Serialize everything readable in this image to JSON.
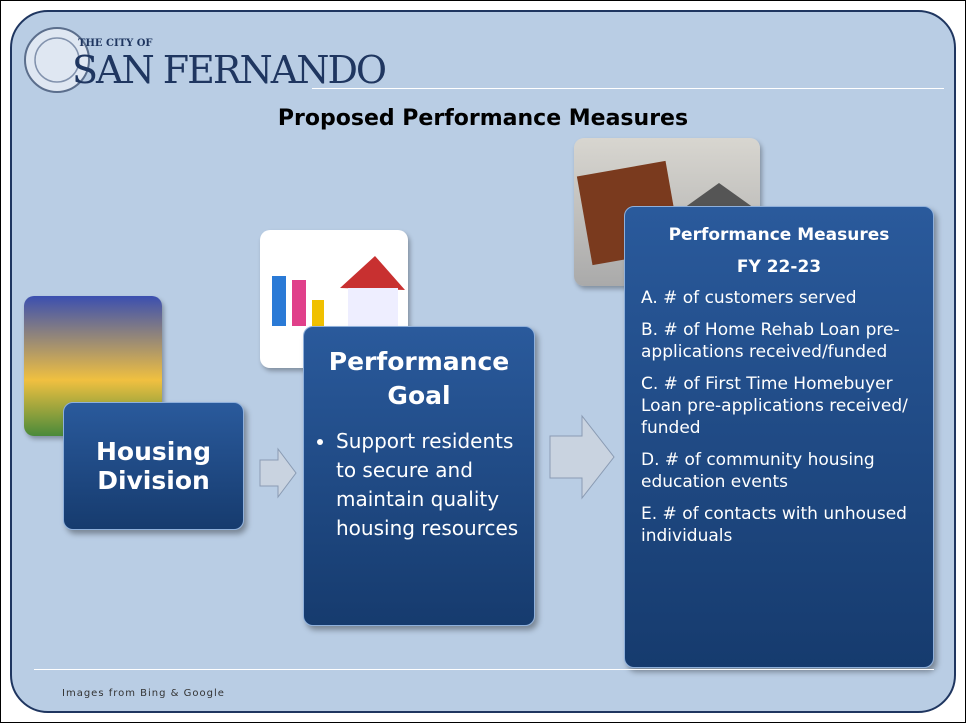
{
  "logo": {
    "small": "THE CITY OF",
    "name": "SAN FERNANDO"
  },
  "title": "Proposed Performance Measures",
  "division": {
    "label": "Housing Division"
  },
  "goal": {
    "heading": "Performance Goal",
    "bullets": [
      "Support residents to secure and maintain quality housing resources"
    ]
  },
  "measures": {
    "heading": "Performance Measures",
    "period": "FY 22-23",
    "items": [
      "A. # of customers served",
      "B.  # of Home Rehab Loan pre-applications received/funded",
      "C.  # of First Time Homebuyer Loan pre-applications received/ funded",
      "D.  # of community housing education events",
      "E.  # of contacts with unhoused individuals"
    ]
  },
  "footer": "Images from Bing & Google"
}
